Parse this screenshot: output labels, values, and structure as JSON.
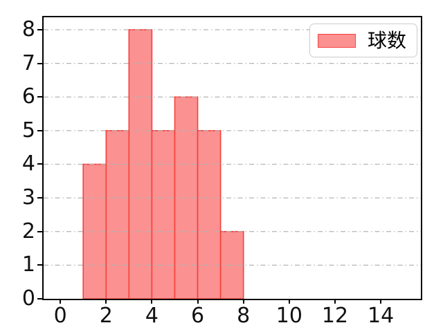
{
  "chart_data": {
    "type": "bar",
    "subtype": "histogram",
    "title": "",
    "xlabel": "",
    "ylabel": "",
    "bin_edges": [
      1,
      2,
      3,
      4,
      5,
      6,
      7,
      8
    ],
    "values": [
      4,
      5,
      8,
      5,
      6,
      5,
      2
    ],
    "series": [
      {
        "name": "球数",
        "values": [
          4,
          5,
          8,
          5,
          6,
          5,
          2
        ]
      }
    ],
    "xticks": [
      0,
      2,
      4,
      6,
      8,
      10,
      12,
      14
    ],
    "yticks": [
      0,
      1,
      2,
      3,
      4,
      5,
      6,
      7,
      8
    ],
    "xlim": [
      -0.73,
      15.75
    ],
    "ylim": [
      0,
      8.37
    ],
    "grid": "horizontal",
    "grid_style": "dash-dot",
    "legend_position": "upper right",
    "colors": {
      "bar_fill": "#FB9191",
      "bar_edge": "#F5413C",
      "grid": "#b4b4b4",
      "spine": "#000000",
      "tick_label": "#111111",
      "legend_border": "#cccccc",
      "legend_background": "#ffffff"
    }
  },
  "legend": {
    "label": "球数"
  }
}
